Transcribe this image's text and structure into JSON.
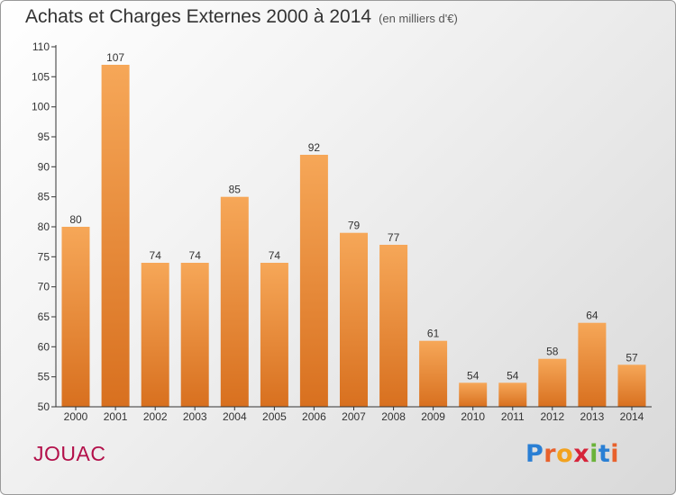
{
  "header": {
    "title": "Achats et Charges Externes 2000 à 2014",
    "subtitle": "(en milliers d'€)"
  },
  "footer": {
    "commune": "JOUAC",
    "logo": "Proxiti",
    "logo_colors": [
      "#2a7fd4",
      "#e8612c",
      "#f2a21f",
      "#d6243a",
      "#6bb33a",
      "#2a7fd4",
      "#e8612c"
    ]
  },
  "colors": {
    "bar_light": "#f6a758",
    "bar_dark": "#d8701f",
    "axis": "#333333"
  },
  "chart_data": {
    "type": "bar",
    "title": "Achats et Charges Externes 2000 à 2014",
    "subtitle": "(en milliers d'€)",
    "categories": [
      "2000",
      "2001",
      "2002",
      "2003",
      "2004",
      "2005",
      "2006",
      "2007",
      "2008",
      "2009",
      "2010",
      "2011",
      "2012",
      "2013",
      "2014"
    ],
    "values": [
      80,
      107,
      74,
      74,
      85,
      74,
      92,
      79,
      77,
      61,
      54,
      54,
      58,
      64,
      57
    ],
    "ylim": [
      50,
      110
    ],
    "yticks": [
      50,
      55,
      60,
      65,
      70,
      75,
      80,
      85,
      90,
      95,
      100,
      105,
      110
    ],
    "xlabel": "",
    "ylabel": "",
    "grid": false,
    "data_labels": true
  }
}
